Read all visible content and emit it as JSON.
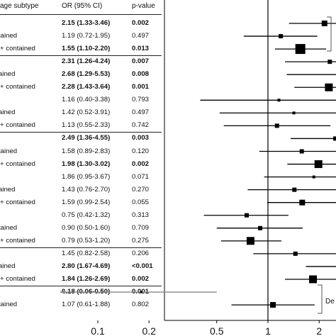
{
  "table": {
    "headers": {
      "subtype": "age subtype",
      "or": "OR (95% CI)",
      "p": "p-value"
    },
    "rows": [
      {
        "label": "",
        "or": "2.15 (1.33-3.46)",
        "p": "0.002",
        "bold": true
      },
      {
        "label": "tained",
        "or": "1.19 (0.72-1.95)",
        "p": "0.497",
        "bold": false
      },
      {
        "label": "+ contained",
        "or": "1.55 (1.10-2.20)",
        "p": "0.013",
        "bold": true
      },
      {
        "label": "",
        "or": "2.31 (1.26-4.24)",
        "p": "0.007",
        "bold": true
      },
      {
        "label": "ained",
        "or": "2.68 (1.29-5.53)",
        "p": "0.008",
        "bold": true
      },
      {
        "label": "+ contained",
        "or": "2.28 (1.43-3.64)",
        "p": "0.001",
        "bold": true
      },
      {
        "label": "",
        "or": "1.16 (0.40-3.38)",
        "p": "0.793",
        "bold": false
      },
      {
        "label": "ained",
        "or": "1.42 (0.52-3.91)",
        "p": "0.497",
        "bold": false
      },
      {
        "label": "+ contained",
        "or": "1.13 (0.55-2.33)",
        "p": "0.742",
        "bold": false
      },
      {
        "label": "",
        "or": "2.49 (1.36-4.55)",
        "p": "0.003",
        "bold": true
      },
      {
        "label": "tained",
        "or": "1.58 (0.89-2.83)",
        "p": "0.120",
        "bold": false
      },
      {
        "label": "+ contained",
        "or": "1.98 (1.30-3.02)",
        "p": "0.002",
        "bold": true
      },
      {
        "label": "",
        "or": "1.86 (0.95-3.67)",
        "p": "0.071",
        "bold": false
      },
      {
        "label": "ained",
        "or": "1.43 (0.76-2.70)",
        "p": "0.270",
        "bold": false
      },
      {
        "label": "+ contained",
        "or": "1.59 (0.99-2.54)",
        "p": "0.055",
        "bold": false
      },
      {
        "label": "",
        "or": "0.75 (0.42-1.32)",
        "p": "0.313",
        "bold": false
      },
      {
        "label": "tained",
        "or": "0.90 (0.50-1.60)",
        "p": "0.709",
        "bold": false
      },
      {
        "label": "+ contained",
        "or": "0.79 (0.53-1.20)",
        "p": "0.275",
        "bold": false
      },
      {
        "label": "",
        "or": "1.45 (0.82-2.58)",
        "p": "0.206",
        "bold": false
      },
      {
        "label": "ained",
        "or": "2.80 (1.67-4.69)",
        "p": "<0.001",
        "bold": true
      },
      {
        "label": "+ contained",
        "or": "1.84 (1.26-2.69)",
        "p": "0.002",
        "bold": true
      },
      {
        "label": "",
        "or": "0.18 (0.06-0.50)",
        "p": "0.001",
        "bold": true
      },
      {
        "label": "tained",
        "or": "1.07 (0.61-1.88)",
        "p": "0.802",
        "bold": false
      }
    ]
  },
  "chart_data": {
    "type": "scatter",
    "title": "",
    "xlabel": "",
    "ylabel": "",
    "x_scale": "log",
    "xlim": [
      0.1,
      3.5
    ],
    "xticks": [
      "0.1",
      "0.2",
      "0.5",
      "1",
      "2"
    ],
    "reference_line": 1,
    "series": [
      {
        "values": [
          {
            "or": 2.15,
            "lo": 1.33,
            "hi": 3.46
          },
          {
            "or": 1.19,
            "lo": 0.72,
            "hi": 1.95
          },
          {
            "or": 1.55,
            "lo": 1.1,
            "hi": 2.2
          },
          {
            "or": 2.31,
            "lo": 1.26,
            "hi": 4.24
          },
          {
            "or": 2.68,
            "lo": 1.29,
            "hi": 5.53
          },
          {
            "or": 2.28,
            "lo": 1.43,
            "hi": 3.64
          },
          {
            "or": 1.16,
            "lo": 0.4,
            "hi": 3.38
          },
          {
            "or": 1.42,
            "lo": 0.52,
            "hi": 3.91
          },
          {
            "or": 1.13,
            "lo": 0.55,
            "hi": 2.33
          },
          {
            "or": 2.49,
            "lo": 1.36,
            "hi": 4.55
          },
          {
            "or": 1.58,
            "lo": 0.89,
            "hi": 2.83
          },
          {
            "or": 1.98,
            "lo": 1.3,
            "hi": 3.02
          },
          {
            "or": 1.86,
            "lo": 0.95,
            "hi": 3.67
          },
          {
            "or": 1.43,
            "lo": 0.76,
            "hi": 2.7
          },
          {
            "or": 1.59,
            "lo": 0.99,
            "hi": 2.54
          },
          {
            "or": 0.75,
            "lo": 0.42,
            "hi": 1.32
          },
          {
            "or": 0.9,
            "lo": 0.5,
            "hi": 1.6
          },
          {
            "or": 0.79,
            "lo": 0.53,
            "hi": 1.2
          },
          {
            "or": 1.45,
            "lo": 0.82,
            "hi": 2.58
          },
          {
            "or": 2.8,
            "lo": 1.67,
            "hi": 4.69
          },
          {
            "or": 1.84,
            "lo": 1.26,
            "hi": 2.69
          },
          {
            "or": 0.18,
            "lo": 0.06,
            "hi": 0.5
          },
          {
            "or": 1.07,
            "lo": 0.61,
            "hi": 1.88
          }
        ],
        "marker_weight": [
          3,
          2,
          5,
          2,
          1,
          4,
          1,
          1,
          2,
          2,
          2,
          4,
          1,
          2,
          3,
          2,
          2,
          4,
          2,
          2,
          4,
          1,
          3
        ]
      }
    ],
    "annotations": [
      "De"
    ],
    "colors": {
      "marker": "#000000",
      "lowest_row_ci": "#888888",
      "axis": "#000000"
    }
  }
}
